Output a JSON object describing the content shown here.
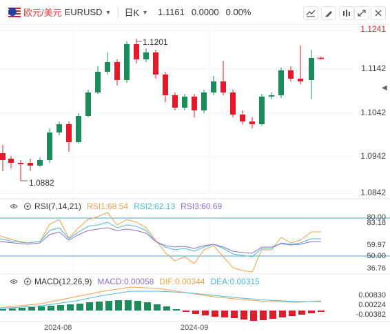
{
  "toolbar": {
    "symbol_cn": "欧元/美元",
    "symbol_code": "EURUSD",
    "period": "日K",
    "price": "1.1161",
    "change": "0.0000",
    "change_pct": "0.00%",
    "icons": [
      "line-draw-icon",
      "brush-icon",
      "indicator-icon",
      "expand-icon",
      "close-icon"
    ]
  },
  "main_axis": [
    "1.1241",
    "1.1142",
    "1.1042",
    "1.0942",
    "1.0842"
  ],
  "annotations": {
    "high": "1.1201",
    "low": "1.0882"
  },
  "rsi": {
    "title": "RSI(7,14,21)",
    "rsi1": "RSI1:68.54",
    "rsi2": "RSI2:62.13",
    "rsi3": "RSI3:60.69",
    "axis": [
      "80.00",
      "83.18",
      "59.97",
      "50.00",
      "36.76"
    ]
  },
  "macd": {
    "title": "MACD(12,26,9)",
    "macd": "MACD:0.00058",
    "dif": "DIF:0.00344",
    "dea": "DEA:0.00315",
    "axis": [
      "0.00830",
      "0.00224",
      "-0.00382"
    ]
  },
  "xaxis": [
    "2024-08",
    "2024-09"
  ],
  "colors": {
    "up": "#1e8c5a",
    "down": "#e4192a",
    "rsi1": "#f0a04b",
    "rsi2": "#4cb7d9",
    "rsi3": "#8a6fc9",
    "hline": "#3aa6d8"
  }
}
